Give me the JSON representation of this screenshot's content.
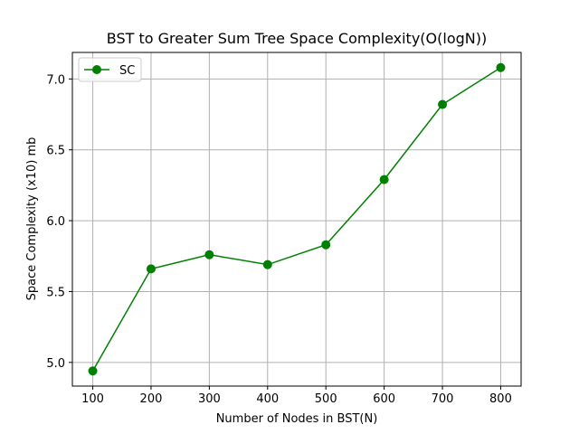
{
  "chart_data": {
    "type": "line",
    "title": "BST to Greater Sum Tree Space Complexity(O(logN))",
    "xlabel": "Number of Nodes in BST(N)",
    "ylabel": "Space Complexity (x10) mb",
    "x": [
      100,
      200,
      300,
      400,
      500,
      600,
      700,
      800
    ],
    "series": [
      {
        "name": "SC",
        "values": [
          4.94,
          5.66,
          5.76,
          5.69,
          5.83,
          6.29,
          6.82,
          7.08
        ],
        "color": "#008000",
        "marker": "circle"
      }
    ],
    "xticks": [
      100,
      200,
      300,
      400,
      500,
      600,
      700,
      800
    ],
    "yticks": [
      5.0,
      5.5,
      6.0,
      6.5,
      7.0
    ],
    "ytick_labels": [
      "5.0",
      "5.5",
      "6.0",
      "6.5",
      "7.0"
    ],
    "xlim": [
      65,
      835
    ],
    "ylim": [
      4.833,
      7.187
    ],
    "grid": true,
    "legend_position": "top-left"
  }
}
